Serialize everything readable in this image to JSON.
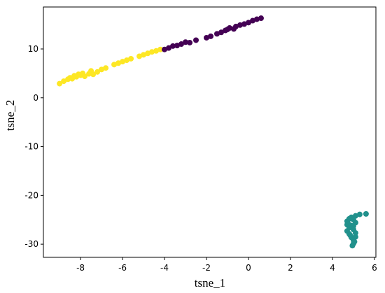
{
  "chart_data": {
    "type": "scatter",
    "x_label": "tsne_1",
    "y_label": "tsne_2",
    "xlim": [
      -9.77,
      6.07
    ],
    "ylim": [
      -32.7,
      18.6
    ],
    "xticks": [
      -8,
      -6,
      -4,
      -2,
      0,
      2,
      4,
      6
    ],
    "yticks": [
      -30,
      -20,
      -10,
      0,
      10
    ],
    "series": [
      {
        "color": "#fde725",
        "x": [
          -9.0,
          -8.8,
          -8.6,
          -8.5,
          -8.4,
          -8.3,
          -8.2,
          -8.1,
          -8.0,
          -7.9,
          -7.8,
          -7.6,
          -7.5,
          -7.4,
          -7.2,
          -7.0,
          -6.8,
          -6.4,
          -6.2,
          -6.0,
          -5.8,
          -5.6,
          -5.2,
          -5.0,
          -4.8,
          -4.6,
          -4.4,
          -4.2
        ],
        "values": [
          2.9,
          3.4,
          3.8,
          4.1,
          3.9,
          4.5,
          4.3,
          4.8,
          4.6,
          5.0,
          4.4,
          4.9,
          5.5,
          4.8,
          5.3,
          5.8,
          6.1,
          6.8,
          7.1,
          7.4,
          7.7,
          8.0,
          8.5,
          8.8,
          9.1,
          9.4,
          9.6,
          9.9
        ]
      },
      {
        "color": "#440154",
        "x": [
          -4.0,
          -3.8,
          -3.6,
          -3.4,
          -3.2,
          -3.0,
          -2.8,
          -2.5,
          -2.0,
          -1.8,
          -1.5,
          -1.3,
          -1.1,
          -1.0,
          -0.9,
          -0.7,
          -0.6,
          -0.4,
          -0.2,
          0.0,
          0.2,
          0.4,
          0.6
        ],
        "values": [
          9.9,
          10.2,
          10.6,
          10.7,
          11.0,
          11.4,
          11.3,
          11.8,
          12.3,
          12.6,
          13.1,
          13.4,
          13.8,
          14.0,
          14.3,
          14.1,
          14.6,
          14.9,
          15.1,
          15.4,
          15.8,
          16.1,
          16.3
        ]
      },
      {
        "color": "#21918c",
        "x": [
          4.7,
          4.8,
          4.9,
          5.0,
          4.7,
          4.8,
          4.7,
          4.8,
          4.9,
          5.0,
          5.0,
          5.1,
          5.1,
          5.0,
          5.0,
          5.1,
          4.9,
          4.85,
          4.95,
          5.1,
          5.3,
          5.6,
          4.75,
          5.05
        ],
        "values": [
          -25.3,
          -24.8,
          -24.5,
          -25.0,
          -26.0,
          -26.6,
          -27.3,
          -27.9,
          -28.6,
          -29.2,
          -29.9,
          -28.5,
          -27.7,
          -27.0,
          -26.3,
          -25.6,
          -26.2,
          -28.2,
          -30.3,
          -24.2,
          -23.9,
          -23.8,
          -25.8,
          -29.5
        ]
      }
    ]
  }
}
